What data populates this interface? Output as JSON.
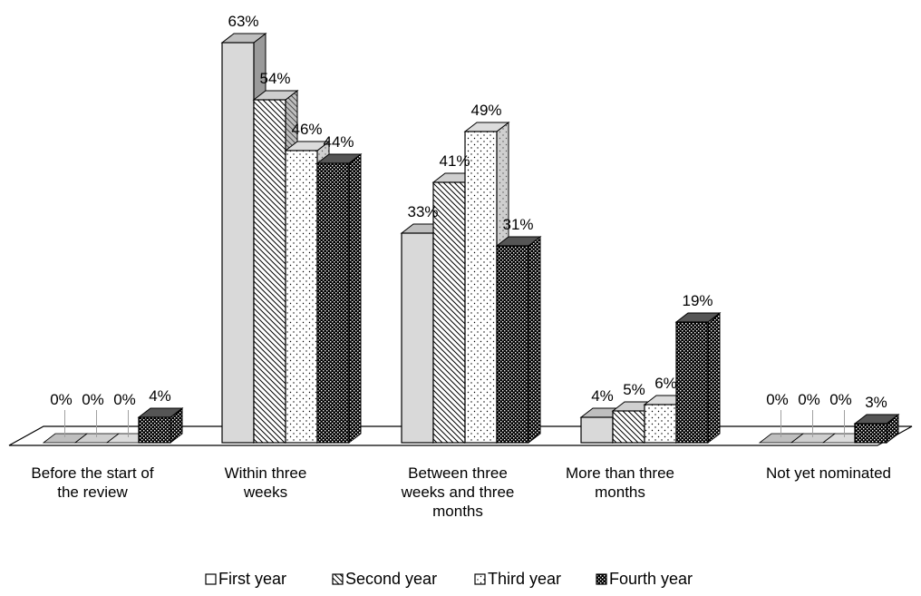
{
  "chart_data": {
    "type": "bar",
    "style": "3d-clustered-column",
    "categories": [
      [
        "Before the start of",
        "the review"
      ],
      [
        "Within three",
        "weeks"
      ],
      [
        "Between three",
        "weeks and three",
        "months"
      ],
      [
        "More than three",
        "months"
      ],
      [
        "Not yet nominated"
      ]
    ],
    "series": [
      {
        "name": "First year",
        "values": [
          0,
          63,
          33,
          4,
          0
        ],
        "labels": [
          "0%",
          "63%",
          "33%",
          "4%",
          "0%"
        ]
      },
      {
        "name": "Second year",
        "values": [
          0,
          54,
          41,
          5,
          0
        ],
        "labels": [
          "0%",
          "54%",
          "41%",
          "5%",
          "0%"
        ]
      },
      {
        "name": "Third year",
        "values": [
          0,
          46,
          49,
          6,
          0
        ],
        "labels": [
          "0%",
          "46%",
          "49%",
          "6%",
          "0%"
        ]
      },
      {
        "name": "Fourth year",
        "values": [
          4,
          44,
          31,
          19,
          3
        ],
        "labels": [
          "4%",
          "44%",
          "31%",
          "19%",
          "3%"
        ]
      }
    ],
    "ylim": [
      0,
      70
    ],
    "grid": false,
    "legend_position": "bottom",
    "title": "",
    "xlabel": "",
    "ylabel": ""
  }
}
